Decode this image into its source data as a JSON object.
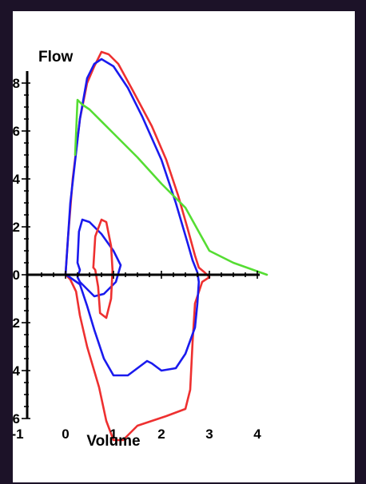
{
  "chart_data": {
    "type": "line",
    "title": "",
    "xlabel": "Volume",
    "ylabel": "Flow",
    "xlim": [
      -1,
      4
    ],
    "ylim": [
      -6,
      8.5
    ],
    "x_ticks": [
      "-1",
      "0",
      "1",
      "2",
      "3",
      "4"
    ],
    "y_ticks": [
      "8",
      "6",
      "4",
      "2",
      "0",
      "-2",
      "-4",
      "-6"
    ],
    "grid": false,
    "legend": "none",
    "colors": {
      "red": "#ee3030",
      "blue": "#1a1aee",
      "green": "#55dd33",
      "axis": "#000000",
      "background": "#1c1228"
    },
    "series": [
      {
        "color": "#ee3030",
        "points": [
          [
            0.0,
            0.0
          ],
          [
            0.05,
            1.5
          ],
          [
            0.15,
            4.0
          ],
          [
            0.3,
            6.5
          ],
          [
            0.45,
            8.0
          ],
          [
            0.6,
            8.7
          ],
          [
            0.75,
            9.3
          ],
          [
            0.9,
            9.2
          ],
          [
            1.1,
            8.8
          ],
          [
            1.4,
            7.7
          ],
          [
            1.8,
            6.2
          ],
          [
            2.1,
            4.8
          ],
          [
            2.35,
            3.3
          ],
          [
            2.55,
            1.9
          ],
          [
            2.7,
            0.8
          ],
          [
            2.78,
            0.3
          ],
          [
            2.9,
            0.1
          ],
          [
            3.0,
            -0.1
          ],
          [
            2.85,
            -0.3
          ],
          [
            2.7,
            -1.2
          ],
          [
            2.65,
            -2.8
          ],
          [
            2.6,
            -4.8
          ],
          [
            2.5,
            -5.6
          ],
          [
            2.1,
            -5.9
          ],
          [
            1.8,
            -6.1
          ],
          [
            1.5,
            -6.3
          ],
          [
            1.2,
            -6.9
          ],
          [
            1.0,
            -6.9
          ],
          [
            0.85,
            -6.1
          ],
          [
            0.7,
            -4.7
          ],
          [
            0.45,
            -3.0
          ],
          [
            0.3,
            -1.7
          ],
          [
            0.22,
            -0.7
          ],
          [
            0.1,
            -0.2
          ],
          [
            0.0,
            0.0
          ]
        ]
      },
      {
        "color": "#1a1aee",
        "points": [
          [
            0.0,
            0.0
          ],
          [
            0.1,
            3.0
          ],
          [
            0.3,
            6.5
          ],
          [
            0.45,
            8.2
          ],
          [
            0.6,
            8.8
          ],
          [
            0.75,
            9.0
          ],
          [
            1.0,
            8.7
          ],
          [
            1.3,
            7.8
          ],
          [
            1.6,
            6.6
          ],
          [
            2.0,
            4.8
          ],
          [
            2.3,
            3.0
          ],
          [
            2.55,
            1.3
          ],
          [
            2.65,
            0.6
          ],
          [
            2.75,
            0.1
          ],
          [
            2.78,
            -0.3
          ],
          [
            2.75,
            -1.2
          ],
          [
            2.7,
            -2.2
          ],
          [
            2.5,
            -3.3
          ],
          [
            2.3,
            -3.9
          ],
          [
            2.0,
            -4.0
          ],
          [
            1.8,
            -3.7
          ],
          [
            1.7,
            -3.6
          ],
          [
            1.5,
            -3.9
          ],
          [
            1.3,
            -4.2
          ],
          [
            1.0,
            -4.2
          ],
          [
            0.8,
            -3.5
          ],
          [
            0.6,
            -2.3
          ],
          [
            0.45,
            -1.3
          ],
          [
            0.3,
            -0.4
          ],
          [
            0.05,
            -0.05
          ],
          [
            0.0,
            0.0
          ]
        ]
      },
      {
        "color": "#1a1aee",
        "points": [
          [
            0.25,
            0.5
          ],
          [
            0.28,
            1.8
          ],
          [
            0.35,
            2.3
          ],
          [
            0.5,
            2.2
          ],
          [
            0.75,
            1.7
          ],
          [
            1.0,
            1.0
          ],
          [
            1.15,
            0.4
          ],
          [
            1.05,
            -0.3
          ],
          [
            0.8,
            -0.8
          ],
          [
            0.6,
            -0.9
          ],
          [
            0.45,
            -0.6
          ],
          [
            0.3,
            -0.3
          ],
          [
            0.25,
            -0.1
          ],
          [
            0.3,
            0.2
          ],
          [
            0.25,
            0.5
          ]
        ]
      },
      {
        "color": "#ee3030",
        "points": [
          [
            0.58,
            0.3
          ],
          [
            0.62,
            1.6
          ],
          [
            0.75,
            2.3
          ],
          [
            0.85,
            2.2
          ],
          [
            0.95,
            1.2
          ],
          [
            0.98,
            0.2
          ],
          [
            0.95,
            -1.0
          ],
          [
            0.85,
            -1.8
          ],
          [
            0.72,
            -1.6
          ],
          [
            0.68,
            -0.5
          ],
          [
            0.62,
            0.2
          ],
          [
            0.58,
            0.3
          ]
        ]
      },
      {
        "color": "#55dd33",
        "points": [
          [
            0.2,
            5.0
          ],
          [
            0.25,
            7.3
          ],
          [
            0.35,
            7.1
          ],
          [
            0.5,
            6.9
          ],
          [
            1.0,
            5.9
          ],
          [
            1.5,
            4.9
          ],
          [
            2.0,
            3.8
          ],
          [
            2.5,
            2.8
          ],
          [
            3.0,
            1.0
          ],
          [
            3.5,
            0.5
          ],
          [
            4.2,
            0.0
          ]
        ]
      }
    ]
  }
}
